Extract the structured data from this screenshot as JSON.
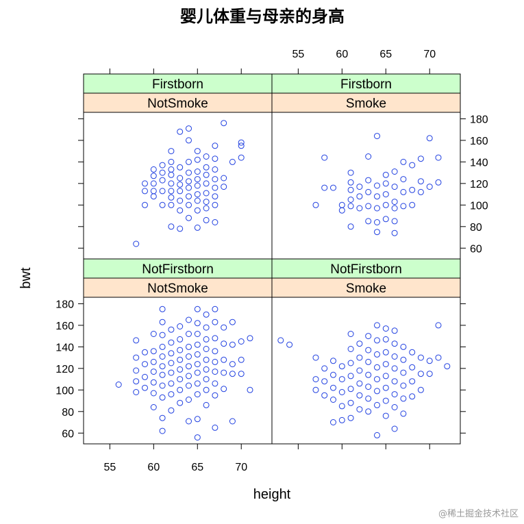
{
  "page": {
    "watermark": "@稀土掘金技术社区"
  },
  "chart_data": {
    "type": "scatter",
    "title": "婴儿体重与母亲的身高",
    "xlabel": "height",
    "ylabel": "bwt",
    "xlim": [
      52,
      73.5
    ],
    "ylim": [
      50,
      186
    ],
    "x_ticks": [
      55,
      60,
      65,
      70
    ],
    "y_ticks": [
      60,
      80,
      100,
      120,
      140,
      160,
      180
    ],
    "grid": false,
    "colors": {
      "points": "#1f3fe0",
      "strip_parity": "#ccffcc",
      "strip_smoke": "#ffe5cc"
    },
    "panels": [
      {
        "id": "firstborn-notsmoke",
        "strips": [
          "Firstborn",
          "NotSmoke"
        ],
        "points": [
          [
            58,
            64
          ],
          [
            59,
            100
          ],
          [
            59,
            113
          ],
          [
            59,
            120
          ],
          [
            60,
            108
          ],
          [
            60,
            113
          ],
          [
            60,
            120
          ],
          [
            60,
            127
          ],
          [
            60,
            133
          ],
          [
            61,
            100
          ],
          [
            61,
            113
          ],
          [
            61,
            123
          ],
          [
            61,
            130
          ],
          [
            61,
            137
          ],
          [
            62,
            80
          ],
          [
            62,
            100
          ],
          [
            62,
            107
          ],
          [
            62,
            113
          ],
          [
            62,
            120
          ],
          [
            62,
            128
          ],
          [
            62,
            133
          ],
          [
            62,
            140
          ],
          [
            62,
            150
          ],
          [
            63,
            78
          ],
          [
            63,
            95
          ],
          [
            63,
            104
          ],
          [
            63,
            113
          ],
          [
            63,
            119
          ],
          [
            63,
            125
          ],
          [
            63,
            135
          ],
          [
            63,
            168
          ],
          [
            64,
            88
          ],
          [
            64,
            100
          ],
          [
            64,
            108
          ],
          [
            64,
            116
          ],
          [
            64,
            122
          ],
          [
            64,
            130
          ],
          [
            64,
            140
          ],
          [
            64,
            160
          ],
          [
            64,
            171
          ],
          [
            65,
            79
          ],
          [
            65,
            95
          ],
          [
            65,
            104
          ],
          [
            65,
            110
          ],
          [
            65,
            118
          ],
          [
            65,
            124
          ],
          [
            65,
            131
          ],
          [
            65,
            142
          ],
          [
            65,
            150
          ],
          [
            66,
            86
          ],
          [
            66,
            97
          ],
          [
            66,
            103
          ],
          [
            66,
            111
          ],
          [
            66,
            120
          ],
          [
            66,
            128
          ],
          [
            66,
            135
          ],
          [
            66,
            145
          ],
          [
            67,
            84
          ],
          [
            67,
            100
          ],
          [
            67,
            108
          ],
          [
            67,
            116
          ],
          [
            67,
            124
          ],
          [
            67,
            133
          ],
          [
            67,
            143
          ],
          [
            67,
            155
          ],
          [
            68,
            117
          ],
          [
            68,
            125
          ],
          [
            68,
            176
          ],
          [
            69,
            140
          ],
          [
            70,
            144
          ],
          [
            70,
            155
          ],
          [
            70,
            158
          ]
        ]
      },
      {
        "id": "firstborn-smoke",
        "strips": [
          "Firstborn",
          "Smoke"
        ],
        "points": [
          [
            57,
            100
          ],
          [
            58,
            116
          ],
          [
            58,
            144
          ],
          [
            59,
            116
          ],
          [
            60,
            100
          ],
          [
            60,
            95
          ],
          [
            61,
            80
          ],
          [
            61,
            99
          ],
          [
            61,
            105
          ],
          [
            61,
            114
          ],
          [
            61,
            121
          ],
          [
            61,
            130
          ],
          [
            62,
            97
          ],
          [
            62,
            108
          ],
          [
            62,
            117
          ],
          [
            63,
            85
          ],
          [
            63,
            99
          ],
          [
            63,
            112
          ],
          [
            63,
            123
          ],
          [
            63,
            145
          ],
          [
            64,
            75
          ],
          [
            64,
            84
          ],
          [
            64,
            97
          ],
          [
            64,
            108
          ],
          [
            64,
            118
          ],
          [
            64,
            164
          ],
          [
            65,
            87
          ],
          [
            65,
            100
          ],
          [
            65,
            110
          ],
          [
            65,
            120
          ],
          [
            65,
            128
          ],
          [
            66,
            74
          ],
          [
            66,
            85
          ],
          [
            66,
            97
          ],
          [
            66,
            103
          ],
          [
            66,
            117
          ],
          [
            66,
            131
          ],
          [
            67,
            99
          ],
          [
            67,
            112
          ],
          [
            67,
            124
          ],
          [
            67,
            140
          ],
          [
            68,
            100
          ],
          [
            68,
            114
          ],
          [
            68,
            137
          ],
          [
            69,
            112
          ],
          [
            69,
            122
          ],
          [
            69,
            143
          ],
          [
            70,
            117
          ],
          [
            70,
            162
          ],
          [
            71,
            121
          ],
          [
            71,
            144
          ]
        ]
      },
      {
        "id": "notfirstborn-notsmoke",
        "strips": [
          "NotFirstborn",
          "NotSmoke"
        ],
        "points": [
          [
            56,
            105
          ],
          [
            58,
            98
          ],
          [
            58,
            108
          ],
          [
            58,
            118
          ],
          [
            58,
            130
          ],
          [
            58,
            146
          ],
          [
            59,
            102
          ],
          [
            59,
            112
          ],
          [
            59,
            124
          ],
          [
            59,
            135
          ],
          [
            60,
            84
          ],
          [
            60,
            97
          ],
          [
            60,
            107
          ],
          [
            60,
            117
          ],
          [
            60,
            126
          ],
          [
            60,
            136
          ],
          [
            60,
            152
          ],
          [
            61,
            62
          ],
          [
            61,
            74
          ],
          [
            61,
            93
          ],
          [
            61,
            104
          ],
          [
            61,
            114
          ],
          [
            61,
            122
          ],
          [
            61,
            131
          ],
          [
            61,
            140
          ],
          [
            61,
            151
          ],
          [
            61,
            163
          ],
          [
            61,
            175
          ],
          [
            62,
            81
          ],
          [
            62,
            96
          ],
          [
            62,
            106
          ],
          [
            62,
            116
          ],
          [
            62,
            125
          ],
          [
            62,
            134
          ],
          [
            62,
            144
          ],
          [
            62,
            156
          ],
          [
            63,
            88
          ],
          [
            63,
            100
          ],
          [
            63,
            110
          ],
          [
            63,
            119
          ],
          [
            63,
            128
          ],
          [
            63,
            137
          ],
          [
            63,
            147
          ],
          [
            63,
            159
          ],
          [
            64,
            71
          ],
          [
            64,
            91
          ],
          [
            64,
            104
          ],
          [
            64,
            113
          ],
          [
            64,
            122
          ],
          [
            64,
            131
          ],
          [
            64,
            140
          ],
          [
            64,
            152
          ],
          [
            64,
            165
          ],
          [
            65,
            56
          ],
          [
            65,
            73
          ],
          [
            65,
            96
          ],
          [
            65,
            106
          ],
          [
            65,
            116
          ],
          [
            65,
            124
          ],
          [
            65,
            133
          ],
          [
            65,
            142
          ],
          [
            65,
            152
          ],
          [
            65,
            162
          ],
          [
            65,
            175
          ],
          [
            66,
            86
          ],
          [
            66,
            100
          ],
          [
            66,
            110
          ],
          [
            66,
            119
          ],
          [
            66,
            128
          ],
          [
            66,
            138
          ],
          [
            66,
            147
          ],
          [
            66,
            158
          ],
          [
            66,
            170
          ],
          [
            67,
            65
          ],
          [
            67,
            95
          ],
          [
            67,
            106
          ],
          [
            67,
            117
          ],
          [
            67,
            126
          ],
          [
            67,
            136
          ],
          [
            67,
            148
          ],
          [
            67,
            163
          ],
          [
            67,
            175
          ],
          [
            68,
            101
          ],
          [
            68,
            116
          ],
          [
            68,
            128
          ],
          [
            68,
            143
          ],
          [
            68,
            158
          ],
          [
            69,
            71
          ],
          [
            69,
            115
          ],
          [
            69,
            124
          ],
          [
            69,
            142
          ],
          [
            69,
            163
          ],
          [
            70,
            115
          ],
          [
            70,
            128
          ],
          [
            70,
            145
          ],
          [
            71,
            100
          ],
          [
            71,
            148
          ]
        ]
      },
      {
        "id": "notfirstborn-smoke",
        "strips": [
          "NotFirstborn",
          "Smoke"
        ],
        "points": [
          [
            53,
            146
          ],
          [
            54,
            142
          ],
          [
            57,
            100
          ],
          [
            57,
            110
          ],
          [
            57,
            130
          ],
          [
            58,
            95
          ],
          [
            58,
            108
          ],
          [
            58,
            120
          ],
          [
            59,
            70
          ],
          [
            59,
            91
          ],
          [
            59,
            102
          ],
          [
            59,
            114
          ],
          [
            59,
            127
          ],
          [
            60,
            72
          ],
          [
            60,
            85
          ],
          [
            60,
            98
          ],
          [
            60,
            110
          ],
          [
            60,
            122
          ],
          [
            61,
            74
          ],
          [
            61,
            88
          ],
          [
            61,
            101
          ],
          [
            61,
            113
          ],
          [
            61,
            125
          ],
          [
            61,
            138
          ],
          [
            61,
            152
          ],
          [
            62,
            82
          ],
          [
            62,
            95
          ],
          [
            62,
            106
          ],
          [
            62,
            118
          ],
          [
            62,
            130
          ],
          [
            62,
            143
          ],
          [
            63,
            80
          ],
          [
            63,
            92
          ],
          [
            63,
            103
          ],
          [
            63,
            114
          ],
          [
            63,
            126
          ],
          [
            63,
            137
          ],
          [
            63,
            150
          ],
          [
            64,
            58
          ],
          [
            64,
            86
          ],
          [
            64,
            99
          ],
          [
            64,
            110
          ],
          [
            64,
            121
          ],
          [
            64,
            133
          ],
          [
            64,
            146
          ],
          [
            64,
            160
          ],
          [
            65,
            76
          ],
          [
            65,
            90
          ],
          [
            65,
            102
          ],
          [
            65,
            113
          ],
          [
            65,
            124
          ],
          [
            65,
            135
          ],
          [
            65,
            147
          ],
          [
            65,
            157
          ],
          [
            66,
            64
          ],
          [
            66,
            84
          ],
          [
            66,
            96
          ],
          [
            66,
            108
          ],
          [
            66,
            120
          ],
          [
            66,
            131
          ],
          [
            66,
            143
          ],
          [
            66,
            155
          ],
          [
            67,
            78
          ],
          [
            67,
            92
          ],
          [
            67,
            104
          ],
          [
            67,
            116
          ],
          [
            67,
            128
          ],
          [
            67,
            140
          ],
          [
            68,
            94
          ],
          [
            68,
            108
          ],
          [
            68,
            121
          ],
          [
            68,
            135
          ],
          [
            69,
            100
          ],
          [
            69,
            115
          ],
          [
            69,
            130
          ],
          [
            70,
            115
          ],
          [
            70,
            127
          ],
          [
            71,
            130
          ],
          [
            71,
            160
          ],
          [
            72,
            122
          ]
        ]
      }
    ]
  }
}
